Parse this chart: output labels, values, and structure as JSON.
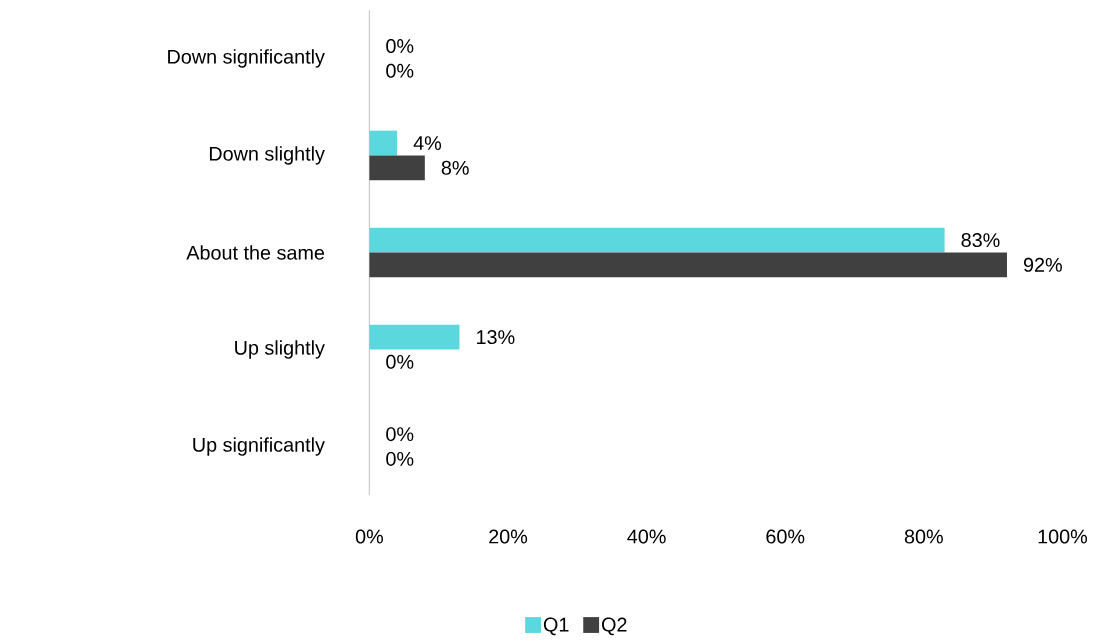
{
  "chart_data": {
    "type": "bar",
    "orientation": "horizontal",
    "categories": [
      "Down significantly",
      "Down slightly",
      "About the same",
      "Up slightly",
      "Up significantly"
    ],
    "series": [
      {
        "name": "Q1",
        "color": "#5bd8dd",
        "values": [
          0,
          4,
          83,
          13,
          0
        ],
        "value_labels": [
          "0%",
          "4%",
          "83%",
          "13%",
          "0%"
        ]
      },
      {
        "name": "Q2",
        "color": "#404040",
        "values": [
          0,
          8,
          92,
          0,
          0
        ],
        "value_labels": [
          "0%",
          "8%",
          "92%",
          "0%",
          "0%"
        ]
      }
    ],
    "xlim": [
      0,
      100
    ],
    "xticks": [
      {
        "value": 0,
        "label": "0%"
      },
      {
        "value": 20,
        "label": "20%"
      },
      {
        "value": 40,
        "label": "40%"
      },
      {
        "value": 60,
        "label": "60%"
      },
      {
        "value": 80,
        "label": "80%"
      },
      {
        "value": 100,
        "label": "100%"
      }
    ],
    "legend": "bottom"
  }
}
